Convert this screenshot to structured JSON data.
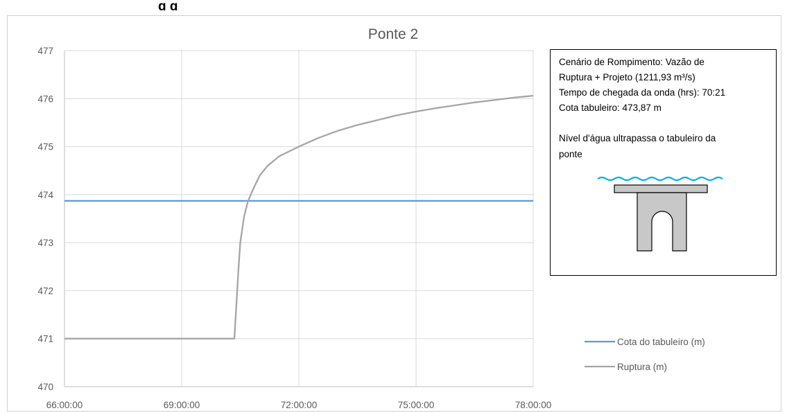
{
  "header_cut_text": "g                g",
  "chart_data": {
    "type": "line",
    "title": "Ponte 2",
    "xlabel": "",
    "ylabel": "",
    "x_ticks": [
      "66:00:00",
      "69:00:00",
      "72:00:00",
      "75:00:00",
      "78:00:00"
    ],
    "x_range_hours": [
      66,
      78
    ],
    "y_ticks": [
      470,
      471,
      472,
      473,
      474,
      475,
      476,
      477
    ],
    "ylim": [
      470,
      477
    ],
    "grid": true,
    "legend_position": "right",
    "series": [
      {
        "name": "Cota do tabuleiro (m)",
        "color": "#5b9bd5",
        "x_hours": [
          66,
          78
        ],
        "values": [
          473.87,
          473.87
        ]
      },
      {
        "name": "Ruptura (m)",
        "color": "#a5a5a5",
        "x_hours": [
          66,
          66.5,
          67,
          68,
          69,
          70,
          70.35,
          70.4,
          70.45,
          70.5,
          70.6,
          70.7,
          70.85,
          71,
          71.2,
          71.5,
          72,
          72.5,
          73,
          73.5,
          74,
          74.5,
          75,
          75.5,
          76,
          76.5,
          77,
          77.5,
          78
        ],
        "values": [
          471.0,
          471.0,
          471.0,
          471.0,
          471.0,
          471.0,
          471.0,
          471.7,
          472.4,
          473.0,
          473.55,
          473.87,
          474.15,
          474.4,
          474.6,
          474.8,
          475.0,
          475.18,
          475.33,
          475.45,
          475.55,
          475.65,
          475.73,
          475.8,
          475.86,
          475.92,
          475.97,
          476.02,
          476.06
        ]
      }
    ]
  },
  "info_box": {
    "line1": "Cenário de Rompimento: Vazão de",
    "line2": "Ruptura + Projeto (1211,93 m³/s)",
    "line3": "Tempo de chegada da onda (hrs): 70:21",
    "line4": "Cota tabuleiro: 473,87 m",
    "line5": "Nível d'água ultrapassa o tabuleiro da",
    "line6": "ponte",
    "water_color": "#00b0f0",
    "bridge_fill": "#c8c8c8"
  }
}
